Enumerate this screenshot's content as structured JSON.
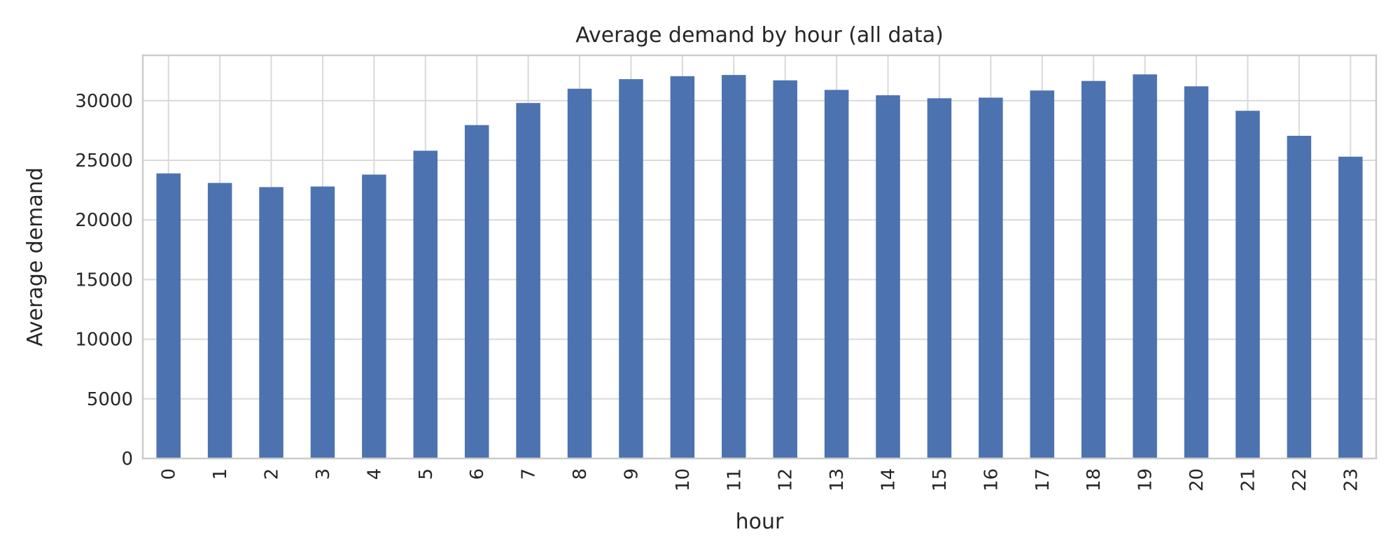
{
  "colors": {
    "bar": "#4c72b0",
    "grid": "#d9d9d9",
    "spine": "#cccccc",
    "text": "#262626",
    "background": "#ffffff"
  },
  "chart_data": {
    "type": "bar",
    "title": "Average demand by hour (all data)",
    "xlabel": "hour",
    "ylabel": "Average demand",
    "categories": [
      "0",
      "1",
      "2",
      "3",
      "4",
      "5",
      "6",
      "7",
      "8",
      "9",
      "10",
      "11",
      "12",
      "13",
      "14",
      "15",
      "16",
      "17",
      "18",
      "19",
      "20",
      "21",
      "22",
      "23"
    ],
    "series": [
      {
        "values": [
          23900,
          23100,
          22750,
          22800,
          23800,
          25800,
          27950,
          29800,
          31000,
          31800,
          32050,
          32150,
          31700,
          30900,
          30450,
          30200,
          30250,
          30850,
          31650,
          32200,
          31200,
          29150,
          27050,
          25300
        ]
      }
    ],
    "ylim": [
      0,
      33800
    ],
    "yticks": [
      0,
      5000,
      10000,
      15000,
      20000,
      25000,
      30000
    ],
    "ytick_labels": [
      "0",
      "5000",
      "10000",
      "15000",
      "20000",
      "25000",
      "30000"
    ],
    "grid": true,
    "legend": false
  }
}
